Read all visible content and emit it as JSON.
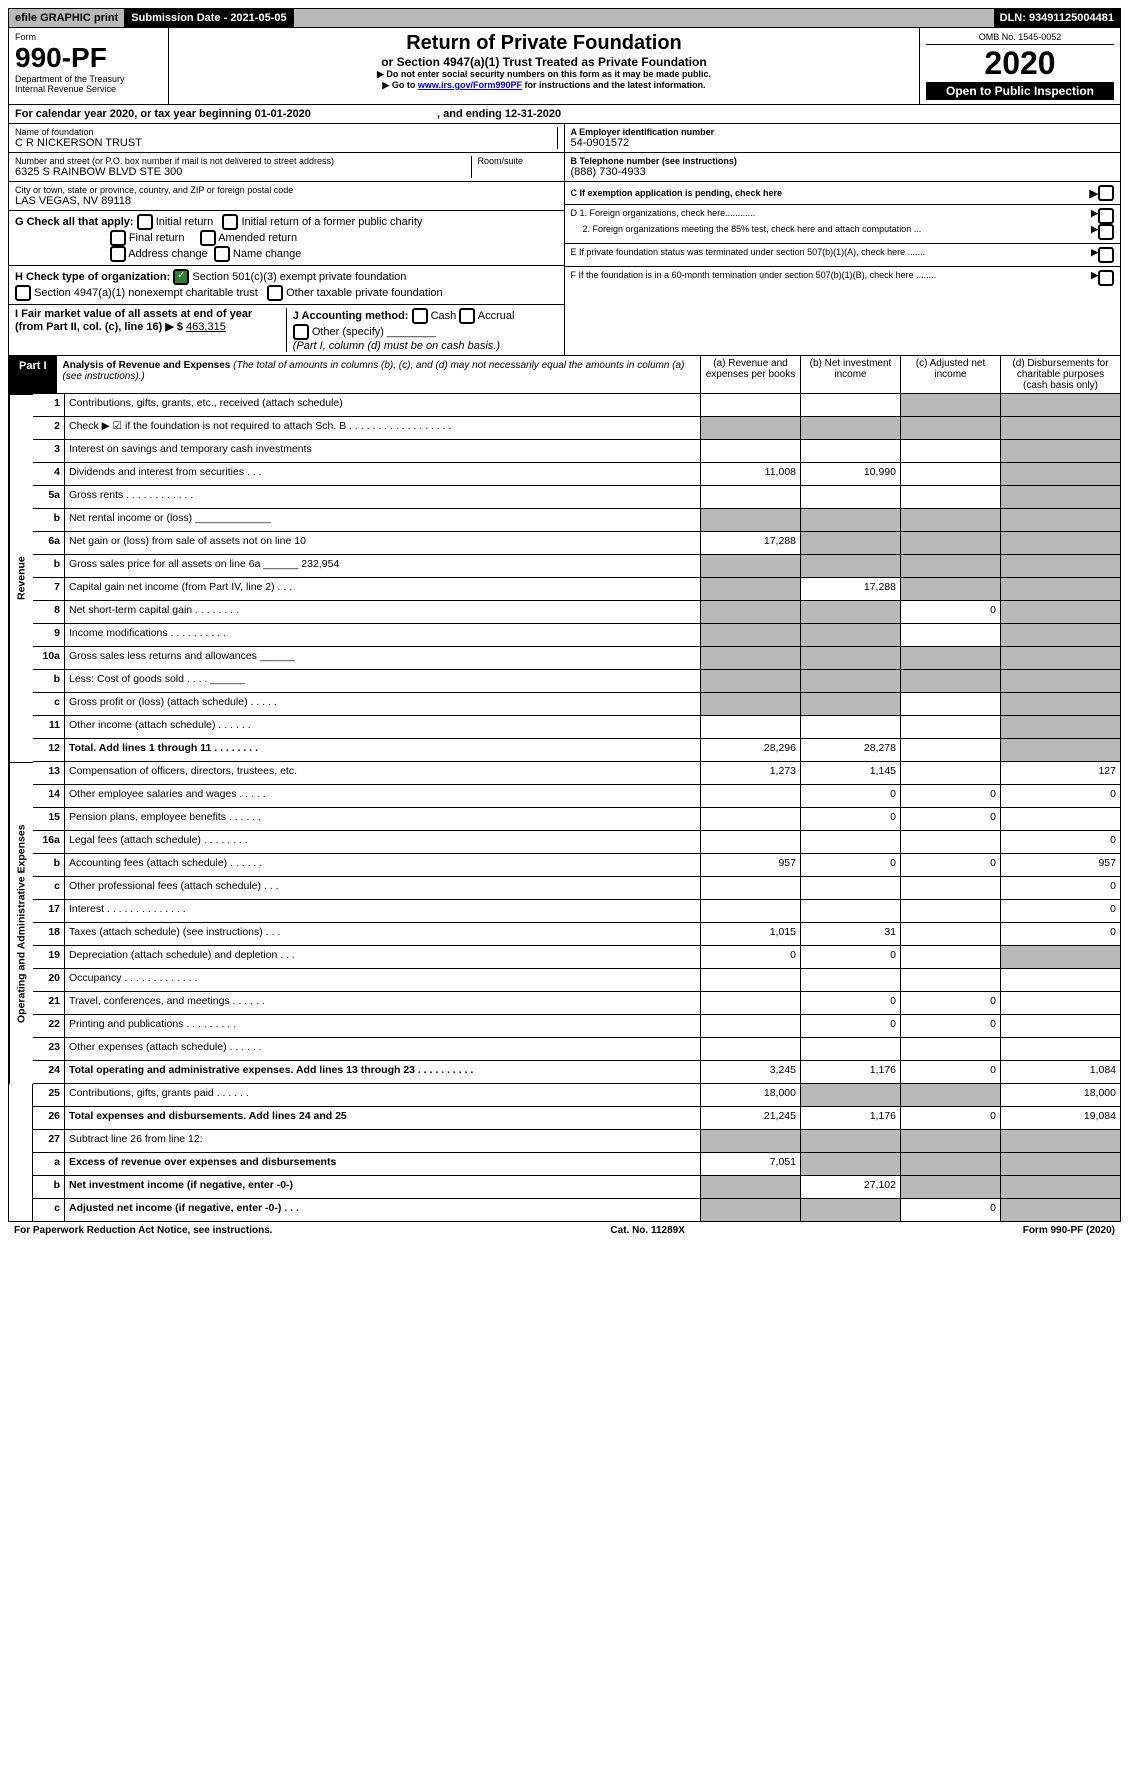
{
  "top": {
    "efile": "efile GRAPHIC print",
    "sub_label": "Submission Date - 2021-05-05",
    "dln": "DLN: 93491125004481"
  },
  "header": {
    "form_word": "Form",
    "form_num": "990-PF",
    "dept1": "Department of the Treasury",
    "dept2": "Internal Revenue Service",
    "title": "Return of Private Foundation",
    "subtitle": "or Section 4947(a)(1) Trust Treated as Private Foundation",
    "note1": "▶ Do not enter social security numbers on this form as it may be made public.",
    "note2_pre": "▶ Go to ",
    "note2_link": "www.irs.gov/Form990PF",
    "note2_post": " for instructions and the latest information.",
    "omb": "OMB No. 1545-0052",
    "year": "2020",
    "inspect": "Open to Public Inspection"
  },
  "cal": {
    "pre": "For calendar year 2020, or tax year beginning 01-01-2020",
    "post": ", and ending 12-31-2020"
  },
  "info": {
    "name_label": "Name of foundation",
    "name": "C R NICKERSON TRUST",
    "addr_label": "Number and street (or P.O. box number if mail is not delivered to street address)",
    "addr": "6325 S RAINBOW BLVD STE 300",
    "room_label": "Room/suite",
    "city_label": "City or town, state or province, country, and ZIP or foreign postal code",
    "city": "LAS VEGAS, NV  89118",
    "a_label": "A Employer identification number",
    "a_val": "54-0901572",
    "b_label": "B Telephone number (see instructions)",
    "b_val": "(888) 730-4933",
    "c_label": "C If exemption application is pending, check here",
    "d1": "D 1. Foreign organizations, check here............",
    "d2": "2. Foreign organizations meeting the 85% test, check here and attach computation ...",
    "e": "E  If private foundation status was terminated under section 507(b)(1)(A), check here .......",
    "f": "F  If the foundation is in a 60-month termination under section 507(b)(1)(B), check here ........",
    "g_label": "G Check all that apply:",
    "g_opts": [
      "Initial return",
      "Initial return of a former public charity",
      "Final return",
      "Amended return",
      "Address change",
      "Name change"
    ],
    "h_label": "H Check type of organization:",
    "h_opt1": "Section 501(c)(3) exempt private foundation",
    "h_opt2": "Section 4947(a)(1) nonexempt charitable trust",
    "h_opt3": "Other taxable private foundation",
    "i_label": "I Fair market value of all assets at end of year (from Part II, col. (c), line 16) ▶ $",
    "i_val": "463,315",
    "j_label": "J Accounting method:",
    "j_opts": [
      "Cash",
      "Accrual",
      "Other (specify)"
    ],
    "j_note": "(Part I, column (d) must be on cash basis.)"
  },
  "part1": {
    "tab": "Part I",
    "title": "Analysis of Revenue and Expenses",
    "note": "(The total of amounts in columns (b), (c), and (d) may not necessarily equal the amounts in column (a) (see instructions).)",
    "col_a": "(a)   Revenue and expenses per books",
    "col_b": "(b)  Net investment income",
    "col_c": "(c)  Adjusted net income",
    "col_d": "(d)  Disbursements for charitable purposes (cash basis only)"
  },
  "sections": {
    "revenue": "Revenue",
    "expenses": "Operating and Administrative Expenses"
  },
  "rows": [
    {
      "n": "1",
      "d": "Contributions, gifts, grants, etc., received (attach schedule)",
      "a": "",
      "b": "",
      "c": "g",
      "dd": "g"
    },
    {
      "n": "2",
      "d": "Check ▶ ☑ if the foundation is not required to attach Sch. B  . . . . . . . . . . . . . . . . . .",
      "a": "g",
      "b": "g",
      "c": "g",
      "dd": "g"
    },
    {
      "n": "3",
      "d": "Interest on savings and temporary cash investments",
      "a": "",
      "b": "",
      "c": "",
      "dd": "g"
    },
    {
      "n": "4",
      "d": "Dividends and interest from securities   .  .  .",
      "a": "11,008",
      "b": "10,990",
      "c": "",
      "dd": "g"
    },
    {
      "n": "5a",
      "d": "Gross rents   . . . . . . . . . . . .",
      "a": "",
      "b": "",
      "c": "",
      "dd": "g"
    },
    {
      "n": "b",
      "d": "Net rental income or (loss)  _____________",
      "a": "g",
      "b": "g",
      "c": "g",
      "dd": "g"
    },
    {
      "n": "6a",
      "d": "Net gain or (loss) from sale of assets not on line 10",
      "a": "17,288",
      "b": "g",
      "c": "g",
      "dd": "g"
    },
    {
      "n": "b",
      "d": "Gross sales price for all assets on line 6a ______ 232,954",
      "a": "g",
      "b": "g",
      "c": "g",
      "dd": "g"
    },
    {
      "n": "7",
      "d": "Capital gain net income (from Part IV, line 2)   .  .  .",
      "a": "g",
      "b": "17,288",
      "c": "g",
      "dd": "g"
    },
    {
      "n": "8",
      "d": "Net short-term capital gain  . . . . . . . .",
      "a": "g",
      "b": "g",
      "c": "0",
      "dd": "g"
    },
    {
      "n": "9",
      "d": "Income modifications  . . . . . . . . . .",
      "a": "g",
      "b": "g",
      "c": "",
      "dd": "g"
    },
    {
      "n": "10a",
      "d": "Gross sales less returns and allowances  ______",
      "a": "g",
      "b": "g",
      "c": "g",
      "dd": "g"
    },
    {
      "n": "b",
      "d": "Less: Cost of goods sold   .  .  .  .  ______",
      "a": "g",
      "b": "g",
      "c": "g",
      "dd": "g"
    },
    {
      "n": "c",
      "d": "Gross profit or (loss) (attach schedule)   .  .  .  .  .",
      "a": "g",
      "b": "g",
      "c": "",
      "dd": "g"
    },
    {
      "n": "11",
      "d": "Other income (attach schedule)   .  .  .  .  .  .",
      "a": "",
      "b": "",
      "c": "",
      "dd": "g"
    },
    {
      "n": "12",
      "d": "Total. Add lines 1 through 11   .  .  .  .  .  .  .  .",
      "a": "28,296",
      "b": "28,278",
      "c": "",
      "dd": "g",
      "bold": true
    },
    {
      "n": "13",
      "d": "Compensation of officers, directors, trustees, etc.",
      "a": "1,273",
      "b": "1,145",
      "c": "",
      "dd": "127"
    },
    {
      "n": "14",
      "d": "Other employee salaries and wages   .  .  .  .  .",
      "a": "",
      "b": "0",
      "c": "0",
      "dd": "0"
    },
    {
      "n": "15",
      "d": "Pension plans, employee benefits   .  .  .  .  .  .",
      "a": "",
      "b": "0",
      "c": "0",
      "dd": ""
    },
    {
      "n": "16a",
      "d": "Legal fees (attach schedule)  . . . . . . . .",
      "a": "",
      "b": "",
      "c": "",
      "dd": "0"
    },
    {
      "n": "b",
      "d": "Accounting fees (attach schedule)   .  .  .  .  .  .",
      "a": "957",
      "b": "0",
      "c": "0",
      "dd": "957"
    },
    {
      "n": "c",
      "d": "Other professional fees (attach schedule)   .  .  .",
      "a": "",
      "b": "",
      "c": "",
      "dd": "0"
    },
    {
      "n": "17",
      "d": "Interest  . . . . . . . . . . . . . .",
      "a": "",
      "b": "",
      "c": "",
      "dd": "0"
    },
    {
      "n": "18",
      "d": "Taxes (attach schedule) (see instructions)   .  .  .",
      "a": "1,015",
      "b": "31",
      "c": "",
      "dd": "0"
    },
    {
      "n": "19",
      "d": "Depreciation (attach schedule) and depletion   .  .  .",
      "a": "0",
      "b": "0",
      "c": "",
      "dd": "g"
    },
    {
      "n": "20",
      "d": "Occupancy  . . . . . . . . . . . . .",
      "a": "",
      "b": "",
      "c": "",
      "dd": ""
    },
    {
      "n": "21",
      "d": "Travel, conferences, and meetings  . . . . . .",
      "a": "",
      "b": "0",
      "c": "0",
      "dd": ""
    },
    {
      "n": "22",
      "d": "Printing and publications  . . . . . . . . .",
      "a": "",
      "b": "0",
      "c": "0",
      "dd": ""
    },
    {
      "n": "23",
      "d": "Other expenses (attach schedule)   .  .  .  .  .  .",
      "a": "",
      "b": "",
      "c": "",
      "dd": ""
    },
    {
      "n": "24",
      "d": "Total operating and administrative expenses. Add lines 13 through 23   .  .  .  .  .  .  .  .  .  .",
      "a": "3,245",
      "b": "1,176",
      "c": "0",
      "dd": "1,084",
      "bold": true
    },
    {
      "n": "25",
      "d": "Contributions, gifts, grants paid   .  .  .  .  .  .",
      "a": "18,000",
      "b": "g",
      "c": "g",
      "dd": "18,000"
    },
    {
      "n": "26",
      "d": "Total expenses and disbursements. Add lines 24 and 25",
      "a": "21,245",
      "b": "1,176",
      "c": "0",
      "dd": "19,084",
      "bold": true
    },
    {
      "n": "27",
      "d": "Subtract line 26 from line 12:",
      "a": "g",
      "b": "g",
      "c": "g",
      "dd": "g"
    },
    {
      "n": "a",
      "d": "Excess of revenue over expenses and disbursements",
      "a": "7,051",
      "b": "g",
      "c": "g",
      "dd": "g",
      "bold": true
    },
    {
      "n": "b",
      "d": "Net investment income (if negative, enter -0-)",
      "a": "g",
      "b": "27,102",
      "c": "g",
      "dd": "g",
      "bold": true
    },
    {
      "n": "c",
      "d": "Adjusted net income (if negative, enter -0-)   .  .  .",
      "a": "g",
      "b": "g",
      "c": "0",
      "dd": "g",
      "bold": true
    }
  ],
  "footer": {
    "left": "For Paperwork Reduction Act Notice, see instructions.",
    "mid": "Cat. No. 11289X",
    "right": "Form 990-PF (2020)"
  }
}
